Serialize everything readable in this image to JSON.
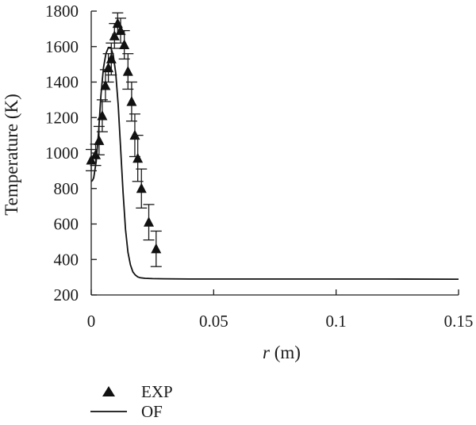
{
  "chart_data": {
    "type": "line",
    "title": "",
    "xlabel_italic": "r",
    "xlabel_unit": " (m)",
    "ylabel": "Temperature (K)",
    "xlim": [
      0,
      0.15
    ],
    "ylim": [
      200,
      1800
    ],
    "xticks": [
      0,
      0.05,
      0.1,
      0.15
    ],
    "xtick_labels": [
      "0",
      "0.05",
      "0.1",
      "0.15"
    ],
    "yticks": [
      200,
      400,
      600,
      800,
      1000,
      1200,
      1400,
      1600,
      1800
    ],
    "ytick_labels": [
      "200",
      "400",
      "600",
      "800",
      "1000",
      "1200",
      "1400",
      "1600",
      "1800"
    ],
    "grid": false,
    "legend_position": "bottom-left",
    "series": [
      {
        "name": "EXP",
        "kind": "scatter",
        "marker": "triangle",
        "color": "#111111",
        "x": [
          0.0,
          0.0018,
          0.0032,
          0.0045,
          0.0058,
          0.007,
          0.0082,
          0.0095,
          0.0108,
          0.012,
          0.0135,
          0.015,
          0.0165,
          0.0178,
          0.019,
          0.0205,
          0.0235,
          0.0265
        ],
        "y": [
          960,
          990,
          1070,
          1210,
          1380,
          1480,
          1530,
          1660,
          1730,
          1690,
          1610,
          1460,
          1290,
          1100,
          970,
          800,
          610,
          460
        ],
        "yerr": [
          60,
          60,
          80,
          90,
          90,
          80,
          90,
          70,
          60,
          70,
          80,
          100,
          110,
          120,
          130,
          110,
          100,
          100
        ]
      },
      {
        "name": "OF",
        "kind": "line",
        "color": "#111111",
        "x": [
          0.0,
          0.0005,
          0.001,
          0.002,
          0.003,
          0.004,
          0.005,
          0.006,
          0.007,
          0.008,
          0.009,
          0.01,
          0.011,
          0.012,
          0.013,
          0.014,
          0.015,
          0.016,
          0.017,
          0.018,
          0.019,
          0.02,
          0.022,
          0.025,
          0.03,
          0.04,
          0.06,
          0.08,
          0.1,
          0.12,
          0.15
        ],
        "y": [
          840,
          845,
          860,
          950,
          1120,
          1330,
          1480,
          1560,
          1595,
          1595,
          1550,
          1450,
          1270,
          1030,
          780,
          570,
          440,
          370,
          330,
          312,
          302,
          297,
          294,
          292,
          291,
          290,
          290,
          290,
          290,
          290,
          289
        ]
      }
    ]
  }
}
